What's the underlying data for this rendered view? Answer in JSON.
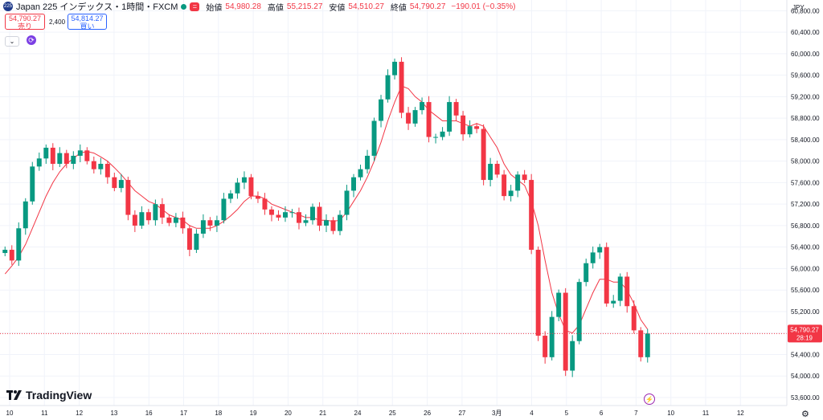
{
  "header": {
    "symbol_badge": "225",
    "title": "Japan 225 インデックス・1時間・FXCM",
    "indicator_icon": "equals-icon",
    "ohlc": [
      {
        "label": "始値",
        "value": "54,980.28"
      },
      {
        "label": "高値",
        "value": "55,215.27"
      },
      {
        "label": "安値",
        "value": "54,510.27"
      },
      {
        "label": "終値",
        "value": "54,790.27"
      },
      {
        "label": "",
        "value": "−190.01 (−0.35%)"
      }
    ]
  },
  "trade": {
    "sell_price": "54,790.27",
    "sell_label": "売り",
    "buy_price": "54,814.27",
    "buy_label": "買い",
    "spread": "2,400"
  },
  "branding": {
    "logo_text": "TradingView"
  },
  "colors": {
    "up": "#089981",
    "down": "#f23645",
    "ma": "#f23645",
    "price_line": "#f23645",
    "grid": "#f0f3fa"
  },
  "chart_data": {
    "type": "line",
    "series_type": "candlestick",
    "currency": "JPY",
    "x_labels": [
      "10",
      "11",
      "12",
      "13",
      "16",
      "17",
      "18",
      "19",
      "20",
      "21",
      "24",
      "25",
      "26",
      "27",
      "3月",
      "4",
      "5",
      "6",
      "7",
      "10",
      "11",
      "12"
    ],
    "y_ticks": [
      "60,800.00",
      "60,400.00",
      "60,000.00",
      "59,600.00",
      "59,200.00",
      "58,800.00",
      "58,400.00",
      "58,000.00",
      "57,600.00",
      "57,200.00",
      "56,800.00",
      "56,400.00",
      "56,000.00",
      "55,600.00",
      "55,200.00",
      "54,800.00",
      "54,400.00",
      "54,000.00",
      "53,600.00"
    ],
    "ylim": [
      53450,
      61000
    ],
    "last_price": "54,790.27",
    "last_price_value": 54790.27,
    "countdown": "28:19",
    "series": [
      {
        "name": "close",
        "values": [
          56350,
          56150,
          56750,
          57250,
          57900,
          58050,
          58250,
          57950,
          58150,
          57950,
          58100,
          58200,
          58000,
          57850,
          57950,
          57700,
          57500,
          57650,
          57000,
          56800,
          57050,
          56900,
          57200,
          56950,
          56850,
          56950,
          56750,
          56350,
          56650,
          56900,
          56800,
          56900,
          57300,
          57400,
          57600,
          57700,
          57350,
          57300,
          57100,
          57000,
          56950,
          57050,
          57050,
          56850,
          56900,
          57150,
          56800,
          56900,
          56700,
          57000,
          57450,
          57700,
          57850,
          58100,
          58750,
          59150,
          59600,
          59850,
          58900,
          58700,
          58950,
          59100,
          58450,
          58450,
          58550,
          59100,
          58850,
          58500,
          58650,
          58600,
          57650,
          57950,
          57750,
          57350,
          57450,
          57750,
          57650,
          56350,
          54750,
          54350,
          55100,
          55550,
          54100,
          54650,
          55750,
          56100,
          56300,
          56400,
          55350,
          55400,
          55850,
          55300,
          54850,
          54350,
          54790
        ]
      },
      {
        "name": "ma",
        "values": [
          55900,
          56050,
          56220,
          56450,
          56750,
          57050,
          57350,
          57600,
          57800,
          57950,
          58050,
          58150,
          58180,
          58150,
          58080,
          58000,
          57880,
          57750,
          57600,
          57450,
          57350,
          57250,
          57200,
          57100,
          57000,
          56950,
          56900,
          56800,
          56750,
          56750,
          56750,
          56800,
          56880,
          56980,
          57100,
          57250,
          57350,
          57350,
          57300,
          57200,
          57150,
          57100,
          57050,
          57000,
          56950,
          56950,
          56900,
          56900,
          56880,
          56900,
          57050,
          57250,
          57450,
          57700,
          58000,
          58350,
          58750,
          59100,
          59400,
          59350,
          59200,
          59100,
          58950,
          58850,
          58750,
          58750,
          58750,
          58700,
          58650,
          58700,
          58650,
          58450,
          58250,
          57950,
          57750,
          57650,
          57550,
          57250,
          56800,
          56150,
          55550,
          55150,
          54850,
          54800,
          54950,
          55250,
          55550,
          55800,
          55800,
          55750,
          55750,
          55600,
          55350,
          55050,
          54870
        ]
      }
    ]
  }
}
